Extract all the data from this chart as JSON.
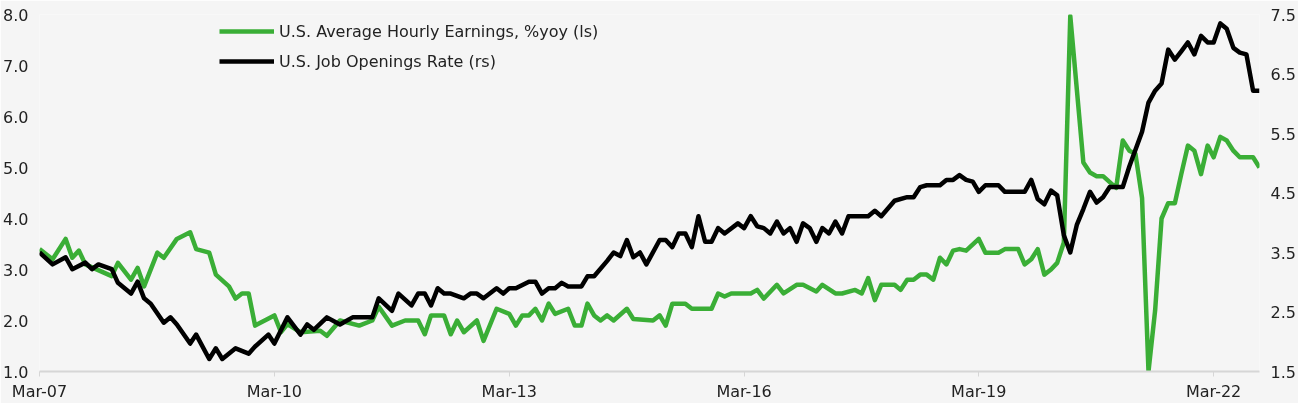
{
  "chart_data": {
    "type": "line",
    "xlim": [
      "2007-03",
      "2022-10"
    ],
    "xticks": [
      {
        "value": "2007-03",
        "label": "Mar-07"
      },
      {
        "value": "2010-03",
        "label": "Mar-10"
      },
      {
        "value": "2013-03",
        "label": "Mar-13"
      },
      {
        "value": "2016-03",
        "label": "Mar-16"
      },
      {
        "value": "2019-03",
        "label": "Mar-19"
      },
      {
        "value": "2022-03",
        "label": "Mar-22"
      }
    ],
    "ylim": [
      1.0,
      8.0
    ],
    "yticks": [
      {
        "value": 1,
        "label": "1.0"
      },
      {
        "value": 2,
        "label": "2.0"
      },
      {
        "value": 3,
        "label": "3.0"
      },
      {
        "value": 4,
        "label": "4.0"
      },
      {
        "value": 5,
        "label": "5.0"
      },
      {
        "value": 6,
        "label": "6.0"
      },
      {
        "value": 7,
        "label": "7.0"
      },
      {
        "value": 8,
        "label": "8.0"
      }
    ],
    "y2lim": [
      1.5,
      7.5
    ],
    "y2ticks": [
      1.5,
      2.5,
      3.5,
      4.5,
      5.5,
      6.5,
      7.5
    ],
    "grid": false,
    "legend": "top left",
    "series": [
      {
        "name": "U.S. Average Hourly Earnings, %yoy (ls)",
        "color": "#3aae36",
        "x": [
          "2007-03",
          "2007-05",
          "2007-07",
          "2007-08",
          "2007-09",
          "2007-10",
          "2008-02",
          "2008-03",
          "2008-05",
          "2008-06",
          "2008-07",
          "2008-09",
          "2008-10",
          "2008-12",
          "2009-02",
          "2009-03",
          "2009-05",
          "2009-06",
          "2009-08",
          "2009-09",
          "2009-10",
          "2009-11",
          "2009-12",
          "2010-03",
          "2010-04",
          "2010-05",
          "2010-07",
          "2010-10",
          "2010-11",
          "2011-01",
          "2011-04",
          "2011-06",
          "2011-07",
          "2011-09",
          "2011-11",
          "2012-01",
          "2012-02",
          "2012-03",
          "2012-05",
          "2012-06",
          "2012-07",
          "2012-08",
          "2012-10",
          "2012-11",
          "2013-01",
          "2013-03",
          "2013-04",
          "2013-05",
          "2013-06",
          "2013-07",
          "2013-08",
          "2013-09",
          "2013-10",
          "2013-12",
          "2014-01",
          "2014-02",
          "2014-03",
          "2014-04",
          "2014-05",
          "2014-06",
          "2014-07",
          "2014-09",
          "2014-10",
          "2015-01",
          "2015-02",
          "2015-03",
          "2015-04",
          "2015-06",
          "2015-07",
          "2015-10",
          "2015-11",
          "2015-12",
          "2016-01",
          "2016-04",
          "2016-05",
          "2016-06",
          "2016-08",
          "2016-09",
          "2016-11",
          "2016-12",
          "2017-02",
          "2017-03",
          "2017-05",
          "2017-06",
          "2017-08",
          "2017-09",
          "2017-10",
          "2017-11",
          "2017-12",
          "2018-02",
          "2018-03",
          "2018-04",
          "2018-05",
          "2018-06",
          "2018-07",
          "2018-08",
          "2018-09",
          "2018-10",
          "2018-11",
          "2018-12",
          "2019-01",
          "2019-03",
          "2019-04",
          "2019-06",
          "2019-07",
          "2019-09",
          "2019-10",
          "2019-11",
          "2019-12",
          "2020-01",
          "2020-02",
          "2020-03",
          "2020-04",
          "2020-05",
          "2020-07",
          "2020-08",
          "2020-09",
          "2020-10",
          "2020-12",
          "2021-01",
          "2021-02",
          "2021-03",
          "2021-04",
          "2021-05",
          "2021-06",
          "2021-07",
          "2021-08",
          "2021-09",
          "2021-10",
          "2021-11",
          "2021-12",
          "2022-01",
          "2022-02",
          "2022-03",
          "2022-04",
          "2022-05",
          "2022-06",
          "2022-07",
          "2022-09",
          "2022-10"
        ],
        "values": [
          3.4,
          3.2,
          3.6,
          3.23,
          3.37,
          3.1,
          2.87,
          3.13,
          2.8,
          3.03,
          2.67,
          3.33,
          3.23,
          3.6,
          3.73,
          3.4,
          3.33,
          2.9,
          2.67,
          2.43,
          2.53,
          2.53,
          1.9,
          2.1,
          1.77,
          1.93,
          1.77,
          1.8,
          1.7,
          2.0,
          1.9,
          2.0,
          2.27,
          1.9,
          2.0,
          2.0,
          1.73,
          2.1,
          2.1,
          1.73,
          2.0,
          1.77,
          2.0,
          1.6,
          2.23,
          2.13,
          1.9,
          2.1,
          2.1,
          2.23,
          2.0,
          2.33,
          2.13,
          2.23,
          1.9,
          1.9,
          2.33,
          2.1,
          2.0,
          2.1,
          2.0,
          2.23,
          2.03,
          2.0,
          2.1,
          1.9,
          2.33,
          2.33,
          2.23,
          2.23,
          2.53,
          2.47,
          2.53,
          2.53,
          2.6,
          2.43,
          2.7,
          2.53,
          2.7,
          2.7,
          2.57,
          2.7,
          2.53,
          2.53,
          2.6,
          2.53,
          2.83,
          2.4,
          2.7,
          2.7,
          2.6,
          2.8,
          2.8,
          2.9,
          2.9,
          2.8,
          3.23,
          3.1,
          3.37,
          3.4,
          3.37,
          3.6,
          3.33,
          3.33,
          3.4,
          3.4,
          3.1,
          3.2,
          3.4,
          2.9,
          3.0,
          3.13,
          3.53,
          7.97,
          5.1,
          4.9,
          4.83,
          4.83,
          4.6,
          5.53,
          5.33,
          5.27,
          4.4,
          1.0,
          2.2,
          4.0,
          4.3,
          4.3,
          4.87,
          5.43,
          5.33,
          4.87,
          5.43,
          5.2,
          5.6,
          5.53,
          5.33,
          5.2,
          5.2,
          5.0
        ]
      },
      {
        "name": "U.S. Job Openings Rate (rs)",
        "color": "#000000",
        "axis": "y2",
        "x": [
          "2007-03",
          "2007-05",
          "2007-07",
          "2007-08",
          "2007-10",
          "2007-11",
          "2007-12",
          "2008-02",
          "2008-03",
          "2008-05",
          "2008-06",
          "2008-07",
          "2008-08",
          "2008-10",
          "2008-11",
          "2008-12",
          "2009-02",
          "2009-03",
          "2009-05",
          "2009-06",
          "2009-07",
          "2009-09",
          "2009-11",
          "2009-12",
          "2010-02",
          "2010-03",
          "2010-05",
          "2010-07",
          "2010-08",
          "2010-09",
          "2010-11",
          "2011-01",
          "2011-03",
          "2011-06",
          "2011-07",
          "2011-09",
          "2011-10",
          "2011-12",
          "2012-01",
          "2012-02",
          "2012-03",
          "2012-04",
          "2012-05",
          "2012-06",
          "2012-08",
          "2012-09",
          "2012-10",
          "2012-11",
          "2013-01",
          "2013-02",
          "2013-03",
          "2013-04",
          "2013-06",
          "2013-07",
          "2013-08",
          "2013-09",
          "2013-10",
          "2013-11",
          "2013-12",
          "2014-02",
          "2014-03",
          "2014-04",
          "2014-06",
          "2014-07",
          "2014-08",
          "2014-09",
          "2014-10",
          "2014-11",
          "2014-12",
          "2015-02",
          "2015-03",
          "2015-04",
          "2015-05",
          "2015-06",
          "2015-07",
          "2015-08",
          "2015-09",
          "2015-10",
          "2015-11",
          "2015-12",
          "2016-02",
          "2016-03",
          "2016-04",
          "2016-05",
          "2016-06",
          "2016-07",
          "2016-08",
          "2016-09",
          "2016-10",
          "2016-11",
          "2016-12",
          "2017-01",
          "2017-02",
          "2017-03",
          "2017-04",
          "2017-05",
          "2017-06",
          "2017-07",
          "2017-10",
          "2017-11",
          "2017-12",
          "2018-02",
          "2018-04",
          "2018-05",
          "2018-06",
          "2018-07",
          "2018-09",
          "2018-10",
          "2018-11",
          "2018-12",
          "2019-01",
          "2019-02",
          "2019-03",
          "2019-04",
          "2019-06",
          "2019-07",
          "2019-10",
          "2019-11",
          "2019-12",
          "2020-01",
          "2020-02",
          "2020-03",
          "2020-04",
          "2020-05",
          "2020-06",
          "2020-07",
          "2020-08",
          "2020-09",
          "2020-10",
          "2020-11",
          "2021-01",
          "2021-02",
          "2021-04",
          "2021-05",
          "2021-06",
          "2021-07",
          "2021-08",
          "2021-09",
          "2021-10",
          "2021-11",
          "2021-12",
          "2022-01",
          "2022-02",
          "2022-03",
          "2022-04",
          "2022-05",
          "2022-06",
          "2022-07",
          "2022-08",
          "2022-09",
          "2022-10"
        ],
        "values": [
          3.5,
          3.3,
          3.42,
          3.22,
          3.33,
          3.22,
          3.3,
          3.22,
          2.99,
          2.81,
          3.01,
          2.73,
          2.64,
          2.32,
          2.41,
          2.29,
          1.97,
          2.12,
          1.71,
          1.89,
          1.71,
          1.89,
          1.8,
          1.92,
          2.12,
          1.97,
          2.41,
          2.12,
          2.29,
          2.2,
          2.41,
          2.29,
          2.41,
          2.41,
          2.73,
          2.52,
          2.81,
          2.61,
          2.81,
          2.81,
          2.61,
          2.9,
          2.81,
          2.81,
          2.73,
          2.81,
          2.81,
          2.73,
          2.9,
          2.81,
          2.9,
          2.9,
          3.01,
          3.01,
          2.81,
          2.9,
          2.9,
          2.99,
          2.93,
          2.93,
          3.1,
          3.1,
          3.36,
          3.5,
          3.44,
          3.71,
          3.42,
          3.5,
          3.3,
          3.71,
          3.71,
          3.59,
          3.82,
          3.82,
          3.59,
          4.11,
          3.68,
          3.68,
          3.91,
          3.82,
          3.99,
          3.91,
          4.11,
          3.94,
          3.91,
          3.82,
          4.02,
          3.82,
          3.91,
          3.68,
          3.99,
          3.91,
          3.68,
          3.91,
          3.82,
          4.02,
          3.82,
          4.11,
          4.11,
          4.2,
          4.11,
          4.37,
          4.43,
          4.43,
          4.6,
          4.63,
          4.63,
          4.72,
          4.72,
          4.8,
          4.72,
          4.69,
          4.52,
          4.63,
          4.63,
          4.52,
          4.52,
          4.72,
          4.4,
          4.31,
          4.54,
          4.46,
          3.79,
          3.5,
          3.97,
          4.23,
          4.52,
          4.34,
          4.43,
          4.6,
          4.6,
          4.95,
          5.53,
          6.02,
          6.22,
          6.34,
          6.91,
          6.74,
          6.88,
          7.03,
          6.83,
          7.14,
          7.03,
          7.03,
          7.35,
          7.26,
          6.94,
          6.86,
          6.83,
          6.22,
          6.22
        ]
      }
    ]
  }
}
